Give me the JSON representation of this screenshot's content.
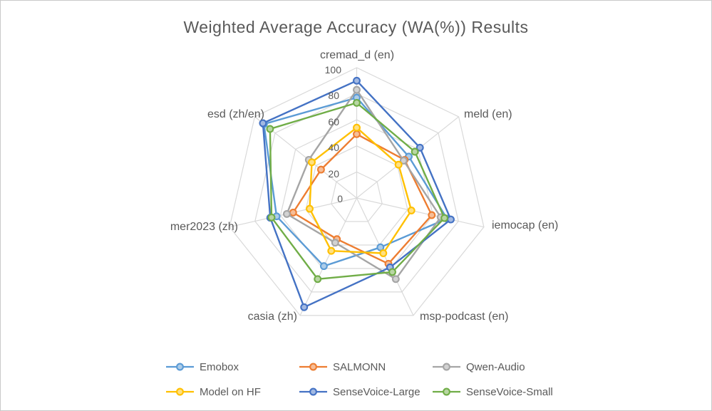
{
  "title": "Weighted Average Accuracy (WA(%)) Results",
  "chart_data": {
    "type": "radar",
    "title": "Weighted Average Accuracy (WA(%)) Results",
    "categories": [
      "cremad_d (en)",
      "meld (en)",
      "iemocap (en)",
      "msp-podcast (en)",
      "casia (zh)",
      "mer2023 (zh)",
      "esd (zh/en)"
    ],
    "scale": {
      "min": 0,
      "max": 100,
      "step": 20,
      "tick_labels": [
        "100",
        "80",
        "60",
        "40",
        "20",
        "0"
      ]
    },
    "grid": true,
    "legend_position": "bottom",
    "series": [
      {
        "name": "Emobox",
        "color": "#5B9BD5",
        "values": [
          77,
          51,
          71,
          42,
          58,
          63,
          91
        ]
      },
      {
        "name": "SALMONN",
        "color": "#ED7D31",
        "values": [
          49,
          47,
          59,
          56,
          35,
          50,
          35
        ]
      },
      {
        "name": "Qwen-Audio",
        "color": "#A5A5A5",
        "values": [
          83,
          46,
          66,
          69,
          38,
          55,
          47
        ]
      },
      {
        "name": "Model on HF",
        "color": "#FFC000",
        "values": [
          54,
          41,
          43,
          47,
          45,
          37,
          44
        ]
      },
      {
        "name": "SenseVoice-Large",
        "color": "#4472C4",
        "values": [
          90,
          62,
          74,
          59,
          93,
          68,
          92
        ]
      },
      {
        "name": "SenseVoice-Small",
        "color": "#70AD47",
        "values": [
          73,
          57,
          69,
          63,
          69,
          67,
          85
        ]
      }
    ],
    "gridline_color": "#D9D9D9",
    "text_color": "#595959"
  }
}
